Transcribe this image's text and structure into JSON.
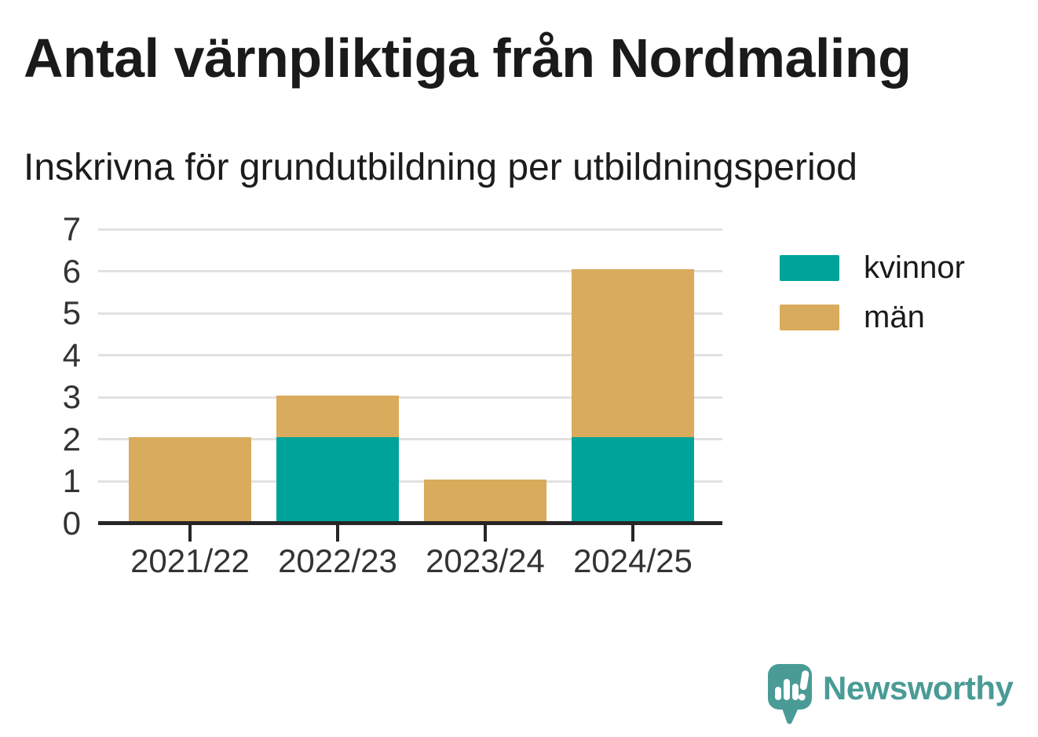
{
  "header": {
    "title": "Antal värnpliktiga från Nordmaling",
    "subtitle": "Inskrivna för grundutbildning per utbildningsperiod"
  },
  "chart_data": {
    "type": "bar",
    "stacked": true,
    "title": "Antal värnpliktiga från Nordmaling",
    "subtitle": "Inskrivna för grundutbildning per utbildningsperiod",
    "categories": [
      "2021/22",
      "2022/23",
      "2023/24",
      "2024/25"
    ],
    "series": [
      {
        "name": "kvinnor",
        "color": "#00a39a",
        "values": [
          0,
          2,
          0,
          2
        ]
      },
      {
        "name": "män",
        "color": "#d9ab5c",
        "values": [
          2,
          1,
          1,
          4
        ]
      }
    ],
    "totals": [
      2,
      3,
      1,
      6
    ],
    "xlabel": "",
    "ylabel": "",
    "ylim": [
      0,
      7
    ],
    "yticks": [
      0,
      1,
      2,
      3,
      4,
      5,
      6,
      7
    ],
    "grid": true,
    "legend_position": "right"
  },
  "colors": {
    "grid": "#e1e1e1",
    "axis": "#262626",
    "tick_text": "#333333",
    "title_text": "#1a1a1a",
    "brand_teal": "#4a9b96"
  },
  "footer": {
    "brand": "Newsworthy"
  }
}
